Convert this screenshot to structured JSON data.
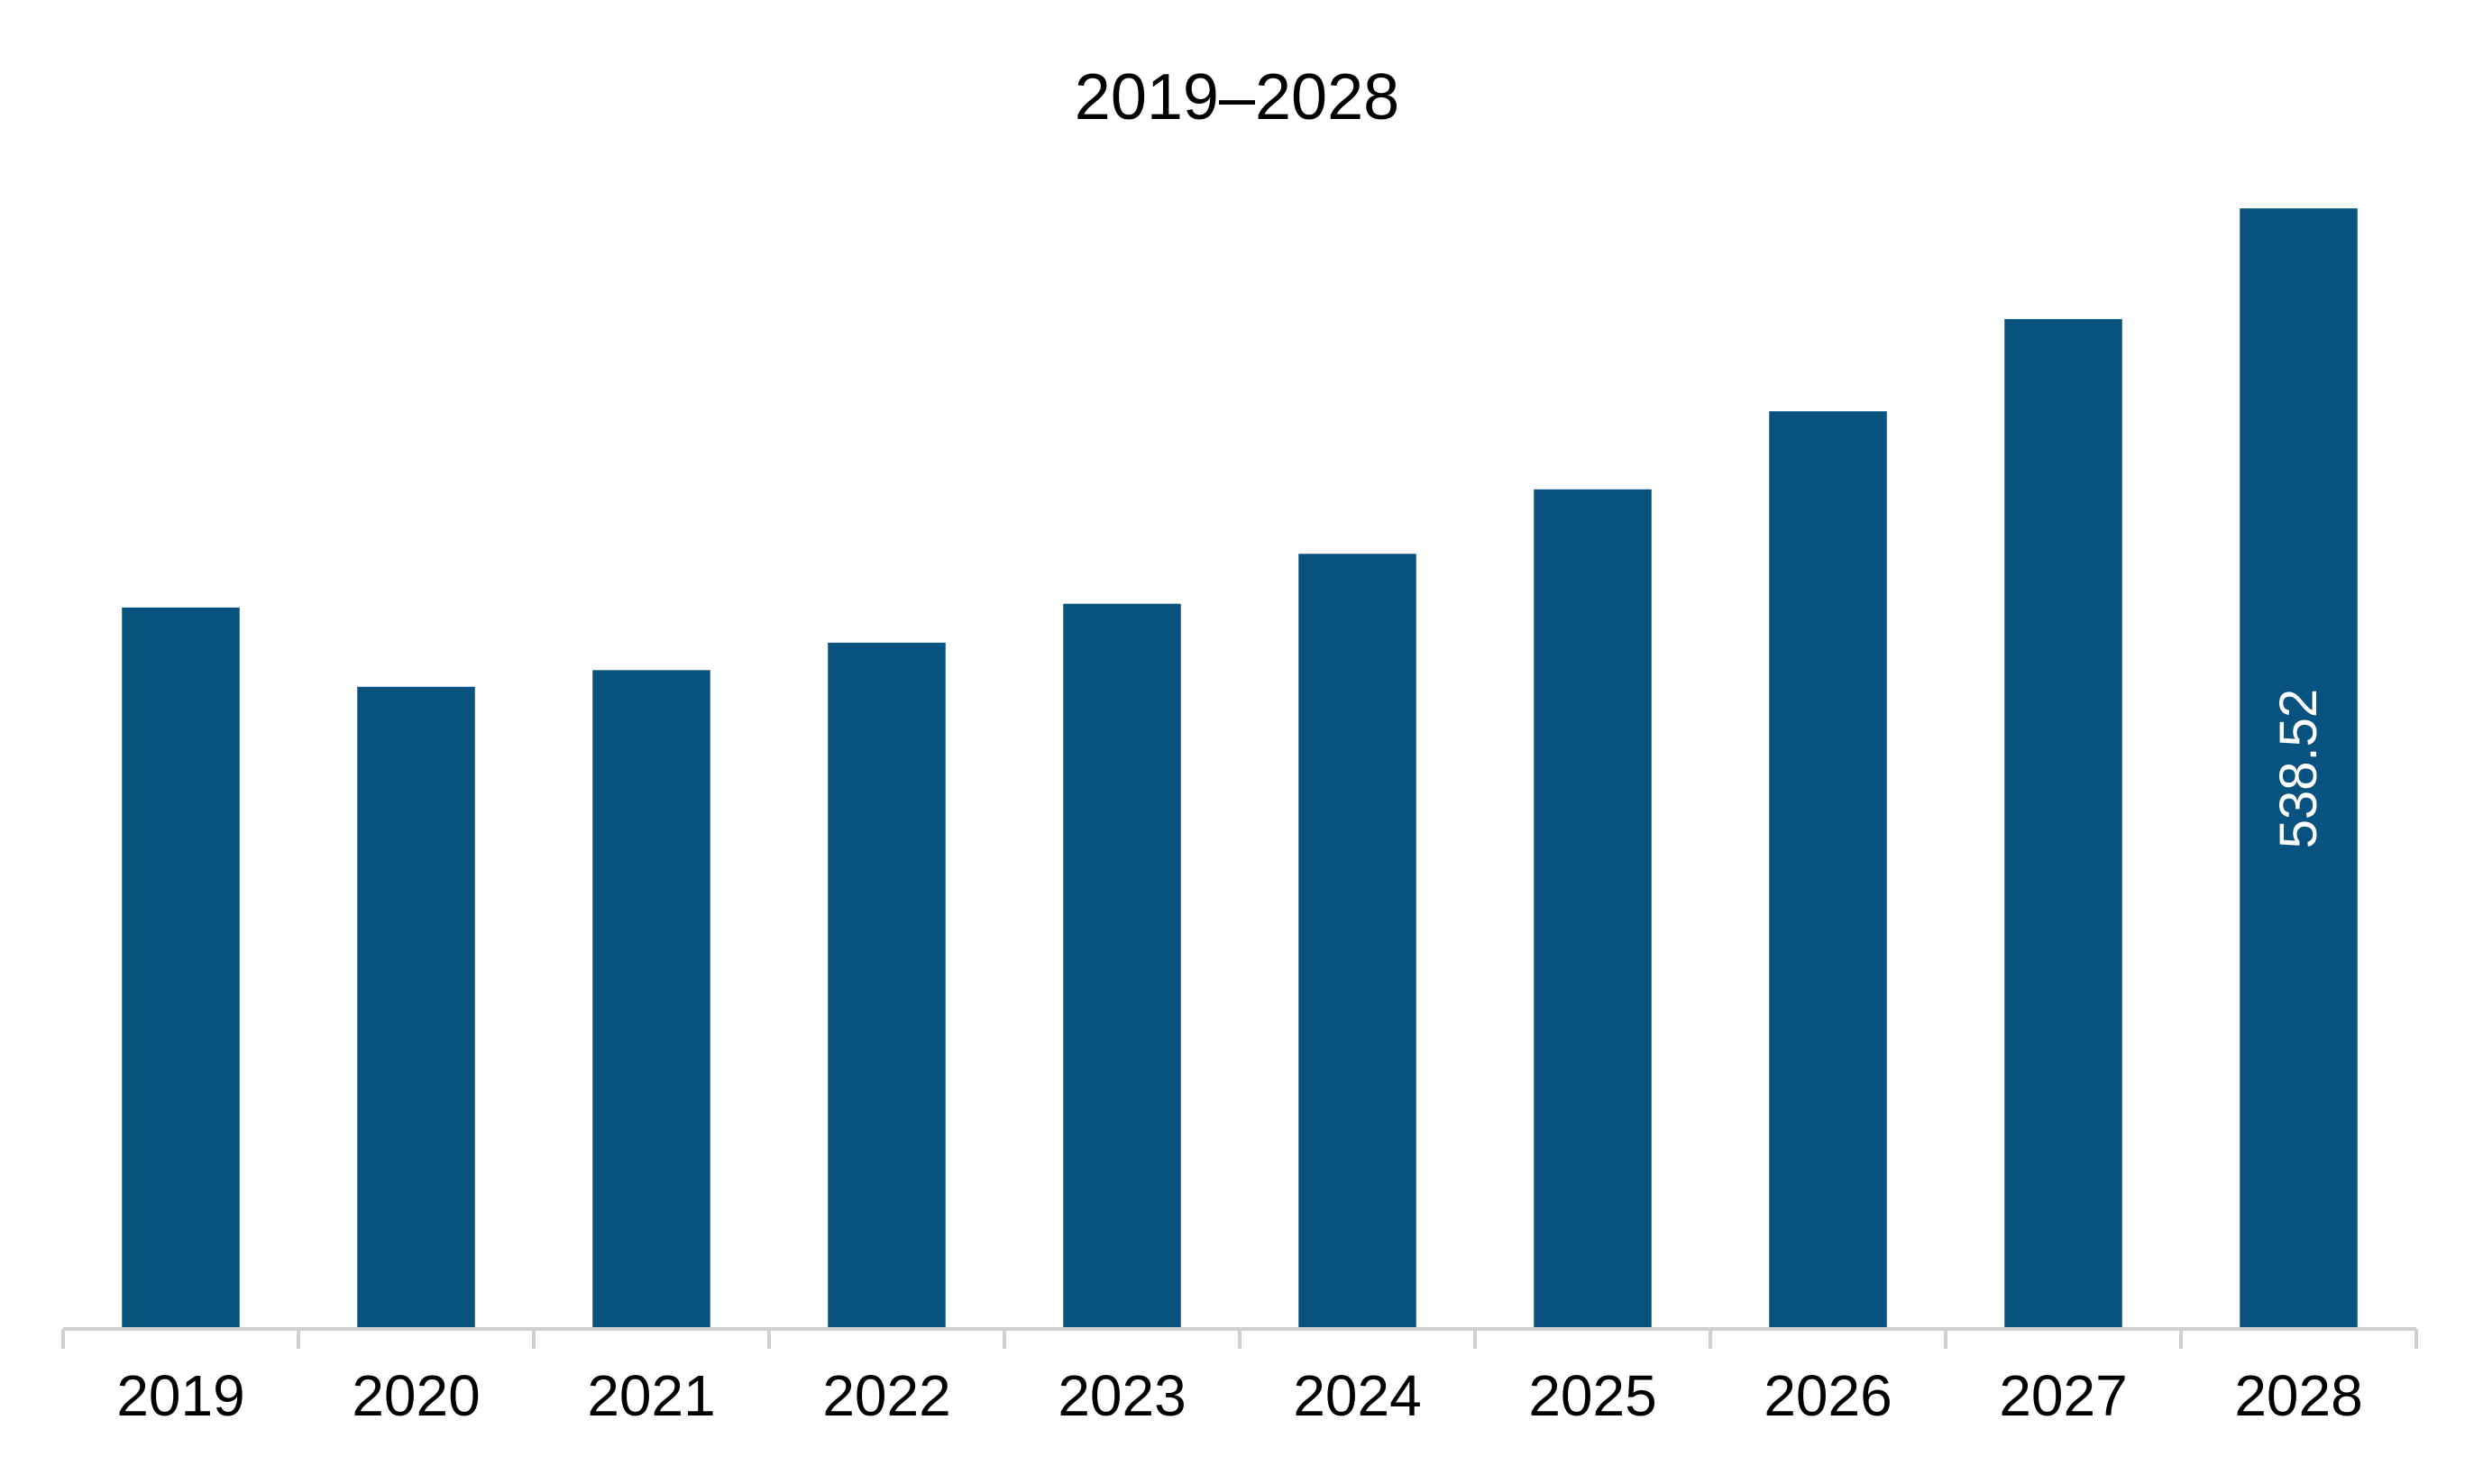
{
  "chart_data": {
    "type": "bar",
    "title": "2019–2028",
    "xlabel": "",
    "ylabel": "",
    "categories": [
      "2019",
      "2020",
      "2021",
      "2022",
      "2023",
      "2024",
      "2025",
      "2026",
      "2027",
      "2028"
    ],
    "values": [
      346.7,
      308.6,
      316.6,
      329.8,
      348.5,
      372.5,
      403.5,
      441.0,
      485.3,
      538.52
    ],
    "data_labels": [
      "",
      "",
      "",
      "",
      "",
      "",
      "",
      "",
      "",
      "538.52"
    ],
    "ylim": [
      0,
      565
    ],
    "grid": false,
    "legend": "none",
    "colors": {
      "bar": "#08527f",
      "axis": "#d0d0d0",
      "data_label": "#ffffff"
    }
  }
}
